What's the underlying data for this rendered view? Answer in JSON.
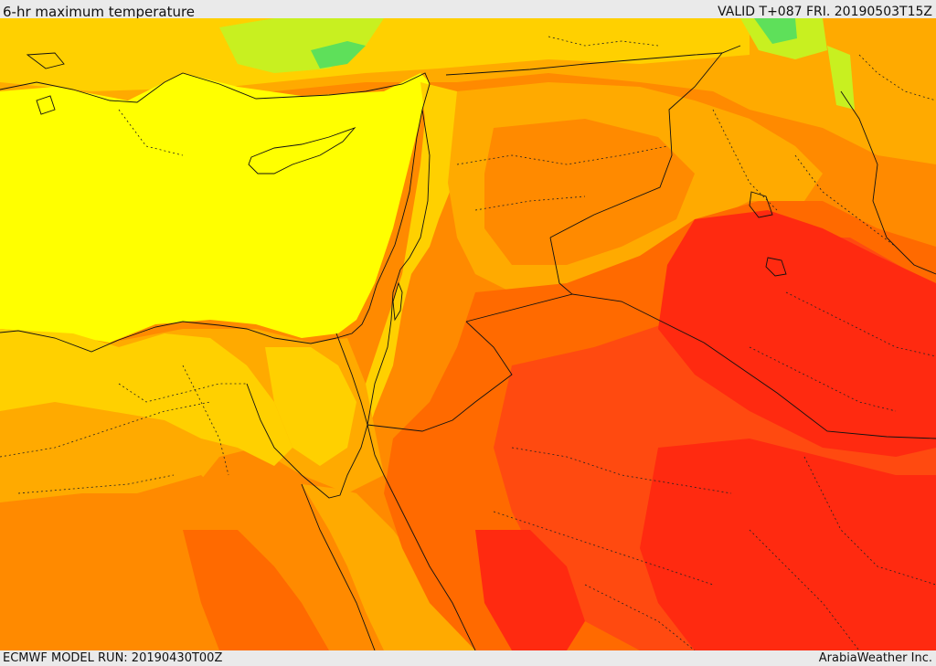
{
  "header": {
    "title": "6-hr maximum temperature",
    "valid": "VALID T+087 FRI. 20190503T15Z"
  },
  "footer": {
    "model_run": "ECMWF MODEL RUN: 20190430T00Z",
    "credit": "ArabiaWeather Inc."
  },
  "map": {
    "field": "6-hr maximum temperature",
    "palette": {
      "green": "#5ee05a",
      "yellow_green": "#c8f020",
      "yellow": "#ffff00",
      "light_orange": "#ffd000",
      "amber": "#ffaa00",
      "orange": "#ff8a00",
      "dark_orange": "#ff6a00",
      "red_orange": "#ff4a10",
      "red": "#ff2a10",
      "border": "#111111"
    }
  }
}
